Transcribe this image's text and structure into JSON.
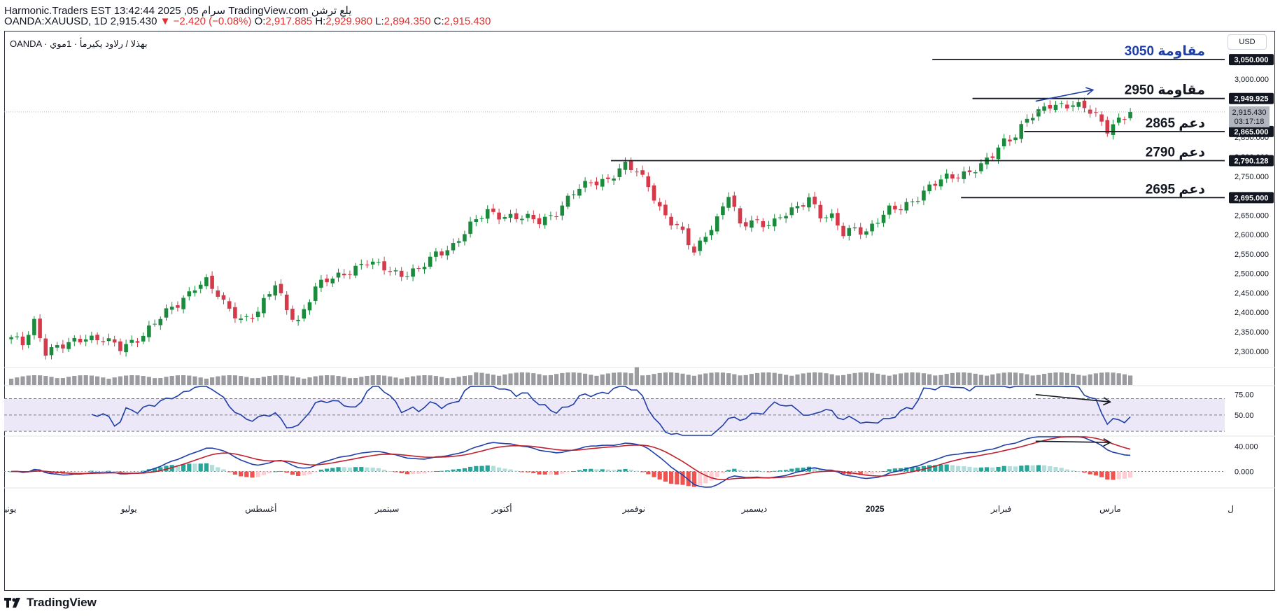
{
  "header": {
    "line1": "Harmonic.Traders EST 13:42:44 2025 ,05 سرام TradingView.com يلع ترشن",
    "symbol": "OANDA:XAUUSD, 1D",
    "price": "2,915.430",
    "change": "▼ −2.420 (−0.08%)",
    "o_label": "O:",
    "o": "2,917.885",
    "h_label": "H:",
    "h": "2,929.980",
    "l_label": "L:",
    "l": "2,894.350",
    "c_label": "C:",
    "c": "2,915.430"
  },
  "symbol_label": "OANDA · بهذلا / رلاود يكيرمأ · 1موي",
  "currency_button": "USD",
  "footer": {
    "brand": "TradingView"
  },
  "colors": {
    "up": "#1b8a3c",
    "down": "#d63a4a",
    "volume": "#9b9ca0",
    "rsi_line": "#1f3fa8",
    "macd_line": "#1f3fa8",
    "signal_line": "#c0202e",
    "hist_pos": "#26a69a",
    "hist_pos_light": "#b2dfdb",
    "hist_neg": "#ef5350",
    "hist_neg_light": "#ffcdd2",
    "annotation_blue": "#1f3fa8",
    "rsi_band": "#ece8f7"
  },
  "chart_data": {
    "type": "candlestick",
    "title": "OANDA:XAUUSD, 1D",
    "ylim": [
      2260,
      3070
    ],
    "y_ticks": [
      "3,000.000",
      "2,950.000",
      "2,900.000",
      "2,850.000",
      "2,800.000",
      "2,750.000",
      "2,700.000",
      "2,650.000",
      "2,600.000",
      "2,550.000",
      "2,500.000",
      "2,450.000",
      "2,400.000",
      "2,350.000",
      "2,300.000"
    ],
    "y_tick_values": [
      3000,
      2950,
      2900,
      2850,
      2800,
      2750,
      2700,
      2650,
      2600,
      2550,
      2500,
      2450,
      2400,
      2350,
      2300
    ],
    "x_labels": [
      {
        "label": "يونيو",
        "index": 0
      },
      {
        "label": "يوليو",
        "index": 21
      },
      {
        "label": "أغسطس",
        "index": 44
      },
      {
        "label": "سبتمبر",
        "index": 66
      },
      {
        "label": "أكتوبر",
        "index": 86
      },
      {
        "label": "نوفمبر",
        "index": 109
      },
      {
        "label": "ديسمبر",
        "index": 130
      },
      {
        "label": "2025",
        "index": 151
      },
      {
        "label": "فبرابر",
        "index": 173
      },
      {
        "label": "مارس",
        "index": 192
      },
      {
        "label": "ل",
        "index": 213
      }
    ],
    "levels": [
      {
        "price": 3050.0,
        "label": "مقاومة 3050",
        "tag": "3,050.000",
        "start_index": 161,
        "color": "#1f3fa8"
      },
      {
        "price": 2949.925,
        "label": "مقاومة 2950",
        "tag": "2,949.925",
        "start_index": 168,
        "color": "#131722"
      },
      {
        "price": 2865.0,
        "label": "دعم 2865",
        "tag": "2,865.000",
        "start_index": 177,
        "color": "#131722"
      },
      {
        "price": 2790.128,
        "label": "دعم 2790",
        "tag": "2,790.128",
        "start_index": 105,
        "color": "#131722"
      },
      {
        "price": 2695.0,
        "label": "دعم 2695",
        "tag": "2,695.000",
        "start_index": 166,
        "color": "#131722"
      }
    ],
    "last_price_tag": {
      "price": 2915.43,
      "value": "2,915.430",
      "countdown": "03:17:18"
    },
    "anchors": [
      [
        0,
        2330
      ],
      [
        2,
        2320
      ],
      [
        4,
        2380
      ],
      [
        6,
        2300
      ],
      [
        9,
        2310
      ],
      [
        13,
        2340
      ],
      [
        16,
        2330
      ],
      [
        19,
        2305
      ],
      [
        22,
        2335
      ],
      [
        26,
        2385
      ],
      [
        29,
        2420
      ],
      [
        32,
        2470
      ],
      [
        34,
        2480
      ],
      [
        37,
        2420
      ],
      [
        40,
        2385
      ],
      [
        43,
        2400
      ],
      [
        46,
        2470
      ],
      [
        48,
        2410
      ],
      [
        50,
        2380
      ],
      [
        53,
        2460
      ],
      [
        56,
        2490
      ],
      [
        59,
        2510
      ],
      [
        62,
        2525
      ],
      [
        65,
        2515
      ],
      [
        68,
        2500
      ],
      [
        71,
        2505
      ],
      [
        74,
        2550
      ],
      [
        77,
        2575
      ],
      [
        80,
        2620
      ],
      [
        83,
        2660
      ],
      [
        86,
        2650
      ],
      [
        89,
        2640
      ],
      [
        92,
        2635
      ],
      [
        95,
        2660
      ],
      [
        98,
        2705
      ],
      [
        101,
        2735
      ],
      [
        104,
        2745
      ],
      [
        107,
        2775
      ],
      [
        109,
        2760
      ],
      [
        111,
        2730
      ],
      [
        113,
        2670
      ],
      [
        115,
        2630
      ],
      [
        117,
        2600
      ],
      [
        119,
        2555
      ],
      [
        121,
        2605
      ],
      [
        123,
        2640
      ],
      [
        125,
        2700
      ],
      [
        127,
        2620
      ],
      [
        129,
        2640
      ],
      [
        131,
        2630
      ],
      [
        133,
        2630
      ],
      [
        135,
        2650
      ],
      [
        137,
        2670
      ],
      [
        139,
        2700
      ],
      [
        141,
        2650
      ],
      [
        143,
        2640
      ],
      [
        145,
        2600
      ],
      [
        147,
        2620
      ],
      [
        149,
        2610
      ],
      [
        151,
        2635
      ],
      [
        153,
        2660
      ],
      [
        155,
        2670
      ],
      [
        157,
        2690
      ],
      [
        160,
        2720
      ],
      [
        163,
        2745
      ],
      [
        166,
        2760
      ],
      [
        169,
        2775
      ],
      [
        171,
        2800
      ],
      [
        173,
        2840
      ],
      [
        175,
        2860
      ],
      [
        177,
        2900
      ],
      [
        179,
        2910
      ],
      [
        181,
        2930
      ],
      [
        183,
        2935
      ],
      [
        185,
        2940
      ],
      [
        187,
        2925
      ],
      [
        189,
        2900
      ],
      [
        191,
        2870
      ],
      [
        192,
        2885
      ],
      [
        193,
        2900
      ],
      [
        195,
        2915.43
      ]
    ],
    "rsi": {
      "upper": 70,
      "lower": 30,
      "mid": 50,
      "ylim": [
        25,
        85
      ],
      "ticks": [
        "75.00",
        "50.00"
      ],
      "tick_values": [
        75,
        50
      ]
    },
    "macd": {
      "ylim": [
        -25,
        55
      ],
      "ticks": [
        "40.000",
        "0.000"
      ],
      "tick_values": [
        40,
        0
      ]
    },
    "annotations": [
      {
        "pane": "price",
        "type": "arrow",
        "from_index": 179,
        "from_value": 2943,
        "to_index": 189,
        "to_value": 2972,
        "color": "#1f3fa8"
      },
      {
        "pane": "rsi",
        "type": "arrow",
        "from_index": 179,
        "from_value": 75,
        "to_index": 192,
        "to_value": 66,
        "color": "#131722"
      },
      {
        "pane": "macd",
        "type": "arrow",
        "from_index": 179,
        "from_value": 48,
        "to_index": 192,
        "to_value": 46,
        "color": "#131722"
      }
    ]
  }
}
